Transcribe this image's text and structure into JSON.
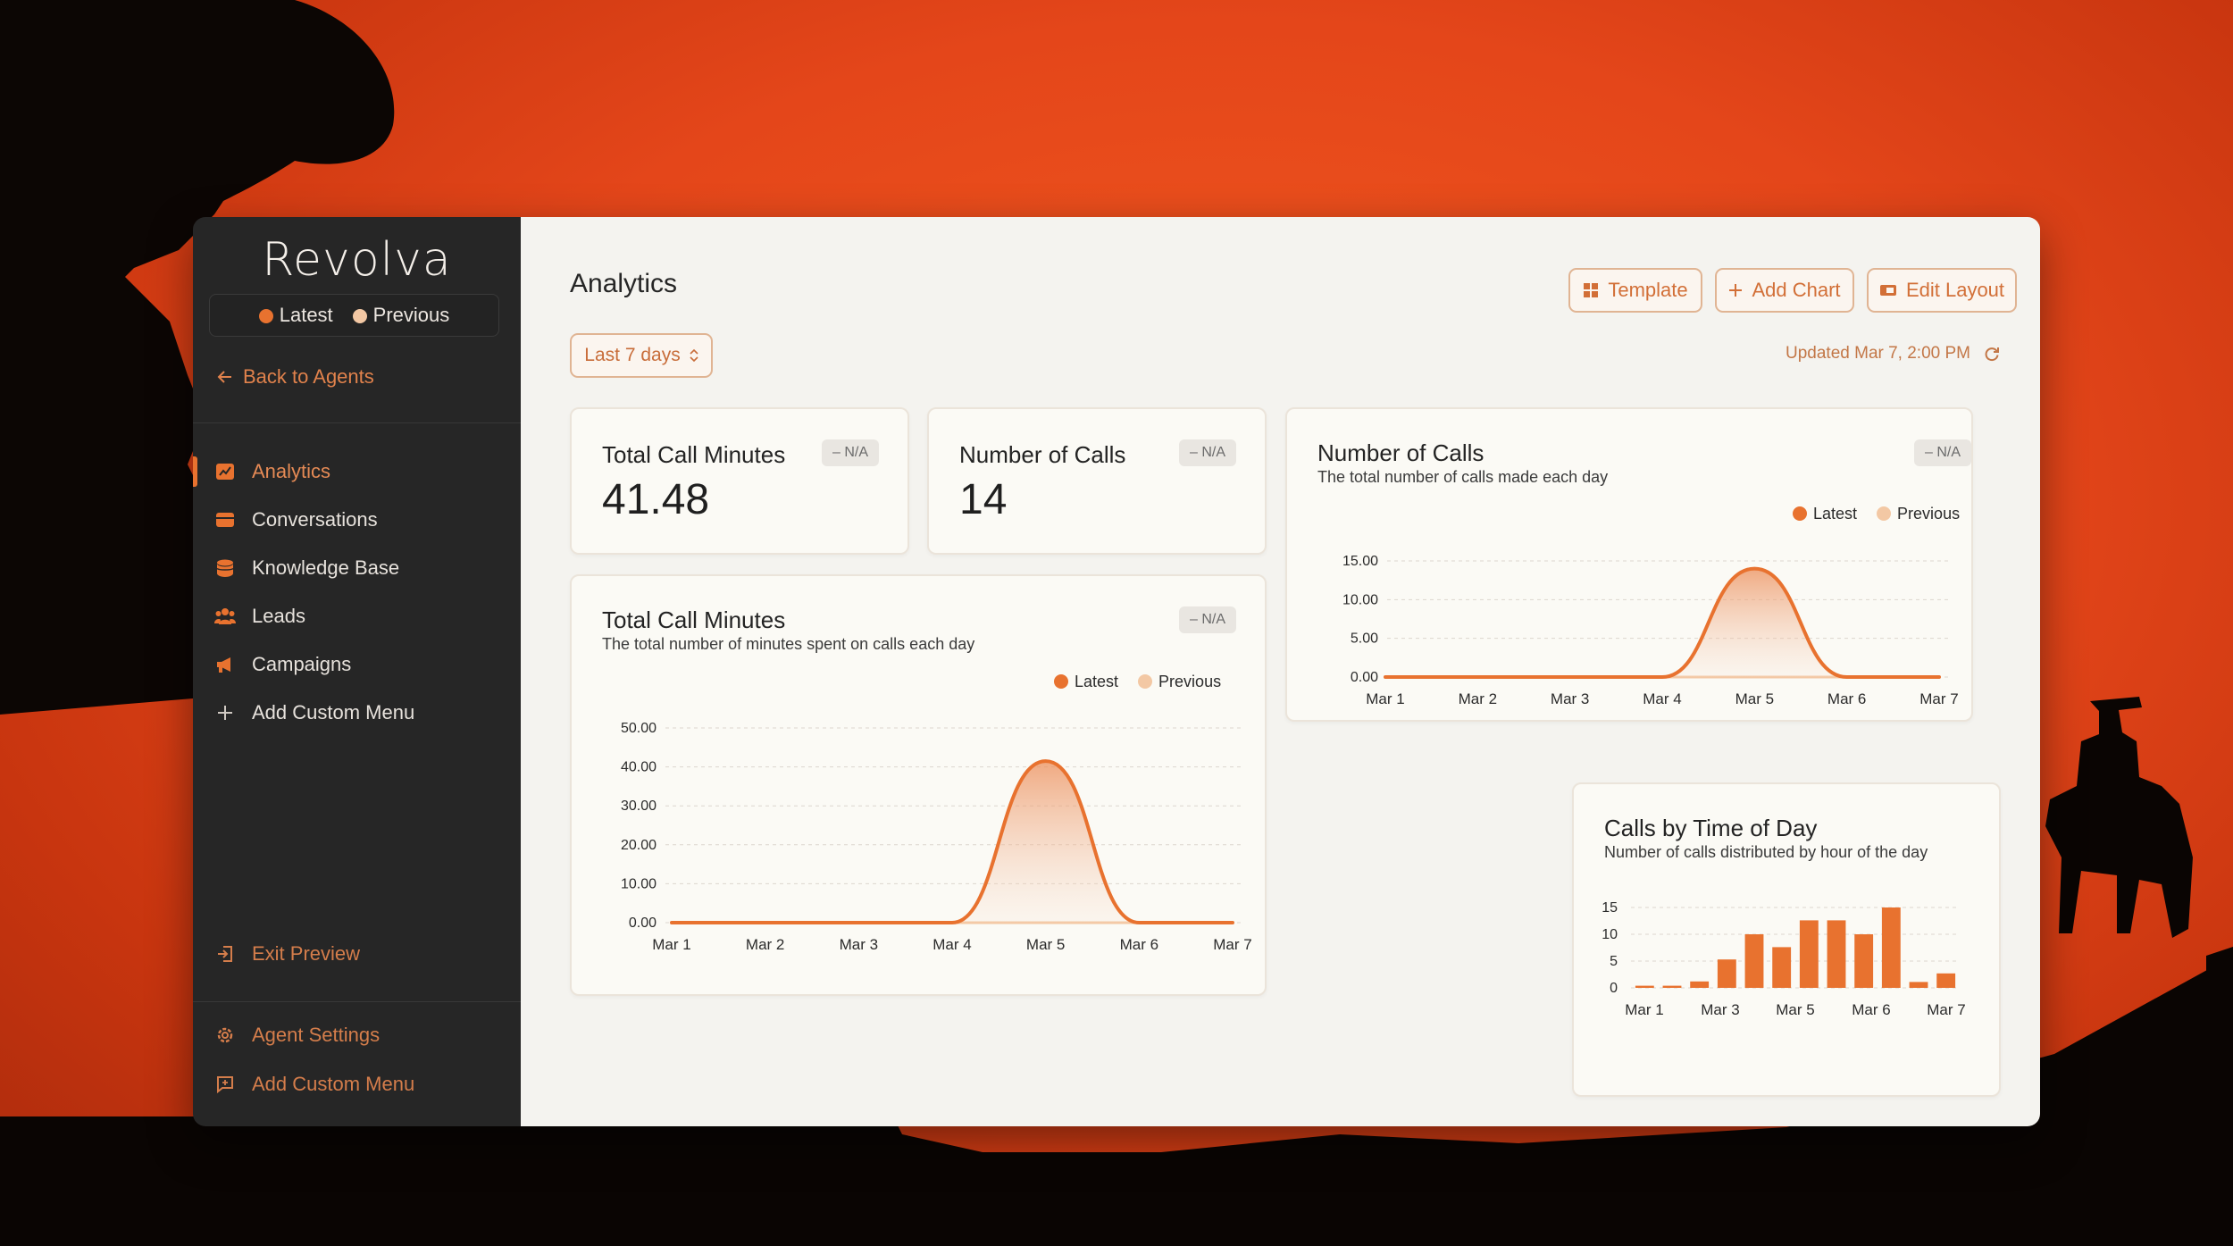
{
  "app": {
    "brand": "Revolva"
  },
  "legend": {
    "latest": "Latest",
    "previous": "Previous"
  },
  "sidebar": {
    "back": "Back to Agents",
    "items": [
      {
        "label": "Analytics",
        "icon": "chart-icon",
        "active": true
      },
      {
        "label": "Conversations",
        "icon": "inbox-icon"
      },
      {
        "label": "Knowledge Base",
        "icon": "database-icon"
      },
      {
        "label": "Leads",
        "icon": "users-icon"
      },
      {
        "label": "Campaigns",
        "icon": "megaphone-icon"
      },
      {
        "label": "Add Custom Menu",
        "icon": "plus-icon"
      }
    ],
    "exit_preview": "Exit Preview",
    "agent_settings": "Agent Settings",
    "add_custom_menu": "Add Custom Menu"
  },
  "header": {
    "title": "Analytics",
    "template": "Template",
    "add_chart": "Add Chart",
    "edit_layout": "Edit Layout",
    "range": "Last 7 days",
    "updated": "Updated Mar 7, 2:00 PM"
  },
  "stats": [
    {
      "title": "Total Call Minutes",
      "value": "41.48",
      "badge": "– N/A"
    },
    {
      "title": "Number of Calls",
      "value": "14",
      "badge": "– N/A"
    }
  ],
  "colors": {
    "accent": "#e8722f",
    "previous": "#f3c8a4",
    "sidebar": "#262626"
  },
  "chart_data": [
    {
      "type": "area",
      "title": "Total Call Minutes",
      "subtitle": "The total number of minutes spent on calls each day",
      "badge": "– N/A",
      "categories": [
        "Mar 1",
        "Mar 2",
        "Mar 3",
        "Mar 4",
        "Mar 5",
        "Mar 6",
        "Mar 7"
      ],
      "ylim": [
        0,
        50
      ],
      "yticks": [
        "0.00",
        "10.00",
        "20.00",
        "30.00",
        "40.00",
        "50.00"
      ],
      "series": [
        {
          "name": "Latest",
          "values": [
            0,
            0,
            0,
            0,
            41.48,
            0,
            0
          ]
        },
        {
          "name": "Previous",
          "values": [
            0,
            0,
            0,
            0,
            0,
            0,
            0
          ]
        }
      ],
      "legend": "top-right",
      "grid": true
    },
    {
      "type": "area",
      "title": "Number of Calls",
      "subtitle": "The total number of calls made each day",
      "badge": "– N/A",
      "categories": [
        "Mar 1",
        "Mar 2",
        "Mar 3",
        "Mar 4",
        "Mar 5",
        "Mar 6",
        "Mar 7"
      ],
      "ylim": [
        0,
        15
      ],
      "yticks": [
        "0.00",
        "5.00",
        "10.00",
        "15.00"
      ],
      "series": [
        {
          "name": "Latest",
          "values": [
            0,
            0,
            0,
            0,
            14,
            0,
            0
          ]
        },
        {
          "name": "Previous",
          "values": [
            0,
            0,
            0,
            0,
            0,
            0,
            0
          ]
        }
      ],
      "legend": "top-right",
      "grid": true
    },
    {
      "type": "bar",
      "title": "Calls by Time of Day",
      "subtitle": "Number of calls distributed by hour of the day",
      "xticks": [
        "Mar 1",
        "Mar 3",
        "Mar 5",
        "Mar 6",
        "Mar 7"
      ],
      "ylim": [
        0,
        15
      ],
      "yticks": [
        "0",
        "5",
        "10",
        "15"
      ],
      "values": [
        0.4,
        0.4,
        1.2,
        5.3,
        10,
        7.6,
        12.6,
        12.6,
        10,
        15,
        1.1,
        2.7
      ],
      "grid": true
    }
  ]
}
